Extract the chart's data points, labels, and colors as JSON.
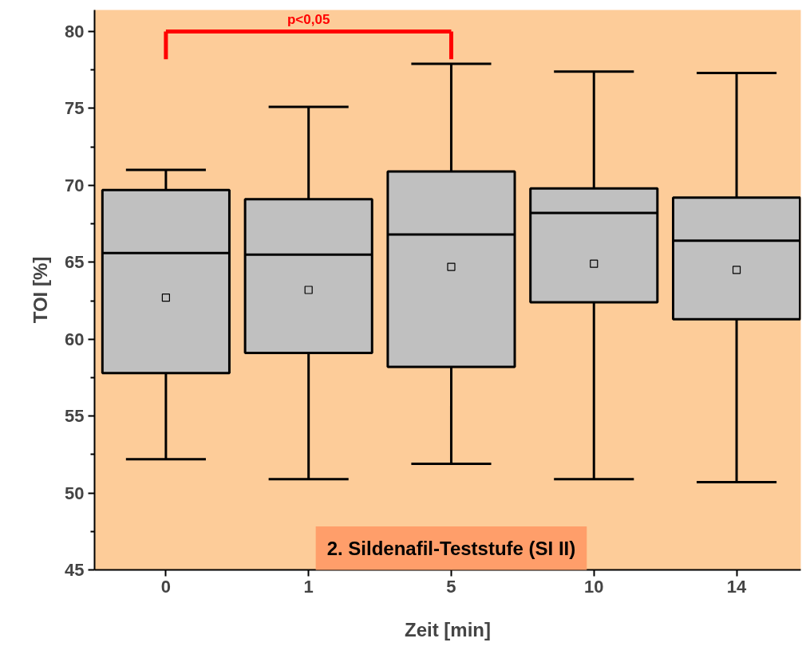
{
  "chart_data": {
    "type": "box",
    "xlabel": "Zeit [min]",
    "ylabel": "TOI [%]",
    "categories": [
      "0",
      "1",
      "5",
      "10",
      "14"
    ],
    "boxes": [
      {
        "low": 52.2,
        "q1": 57.8,
        "median": 65.6,
        "q3": 69.7,
        "high": 71.0,
        "mean": 62.7
      },
      {
        "low": 50.9,
        "q1": 59.1,
        "median": 65.5,
        "q3": 69.1,
        "high": 75.1,
        "mean": 63.2
      },
      {
        "low": 51.9,
        "q1": 58.2,
        "median": 66.8,
        "q3": 70.9,
        "high": 77.9,
        "mean": 64.7
      },
      {
        "low": 50.9,
        "q1": 62.4,
        "median": 68.2,
        "q3": 69.8,
        "high": 77.4,
        "mean": 64.9
      },
      {
        "low": 50.7,
        "q1": 61.3,
        "median": 66.4,
        "q3": 69.2,
        "high": 77.3,
        "mean": 64.5
      }
    ],
    "color": "#c0c0c0",
    "ylim": [
      45,
      81.4
    ],
    "yticks": [
      45,
      50,
      55,
      60,
      65,
      70,
      75,
      80
    ],
    "grid": false,
    "marker": "square",
    "annotations": [
      "p<0,05",
      "2. Sildenafil-Teststufe (SI II)"
    ]
  }
}
